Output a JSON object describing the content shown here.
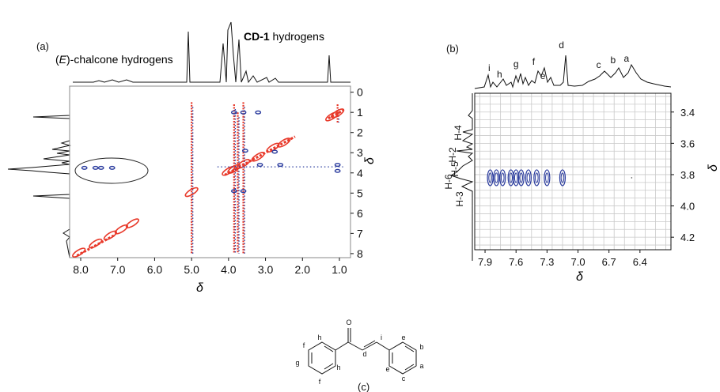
{
  "panel_a": {
    "label": "(a)",
    "annotation_left_prefix": "(",
    "annotation_left_italic": "E",
    "annotation_left_rest": ")-chalcone hydrogens",
    "annotation_right_bold": "CD-1",
    "annotation_right_rest": " hydrogens",
    "axis_symbol": "δ"
  },
  "panel_b": {
    "label": "(b)",
    "axis_symbol": "δ",
    "peak_labels": [
      "i",
      "h",
      "g",
      "f",
      "e",
      "d",
      "c",
      "b",
      "a"
    ],
    "h_labels": [
      "H-6",
      "H-5",
      "H-2",
      "H-4",
      "H-3"
    ]
  },
  "panel_c": {
    "label": "(c)",
    "atom_labels": [
      "O",
      "h",
      "f",
      "g",
      "h",
      "f",
      "i",
      "d",
      "e",
      "b",
      "e",
      "a",
      "c"
    ]
  },
  "chart_data": [
    {
      "type": "scatter",
      "subtype": "2D NMR ROESY contour map",
      "title": "",
      "xlabel": "δ",
      "ylabel": "δ",
      "x_ticks": [
        "8.0",
        "7.0",
        "6.0",
        "5.0",
        "4.0",
        "3.0",
        "2.0",
        "1.0"
      ],
      "y_ticks": [
        "0",
        "1",
        "2",
        "3",
        "4",
        "5",
        "6",
        "7",
        "8"
      ],
      "xlim": [
        8.3,
        0.7
      ],
      "ylim": [
        -0.3,
        8.2
      ],
      "grid": false,
      "colors": {
        "positive": "#e8392a",
        "negative": "#2b3c9e"
      },
      "series": [
        {
          "name": "",
          "color": "positive",
          "diagonal": [
            [
              8.05,
              7.95
            ],
            [
              7.6,
              7.5
            ],
            [
              7.2,
              7.1
            ],
            [
              6.9,
              6.8
            ],
            [
              6.6,
              6.5
            ],
            [
              5.0,
              4.95
            ],
            [
              4.0,
              3.9
            ],
            [
              3.85,
              3.8
            ],
            [
              3.6,
              3.55
            ],
            [
              3.2,
              3.2
            ],
            [
              2.8,
              2.75
            ],
            [
              2.5,
              2.5
            ],
            [
              1.2,
              1.2
            ],
            [
              1.05,
              1.05
            ]
          ]
        },
        {
          "name": "",
          "color": "negative",
          "cross_peaks": [
            [
              7.9,
              3.75
            ],
            [
              7.6,
              3.75
            ],
            [
              7.45,
              3.75
            ],
            [
              7.15,
              3.75
            ],
            [
              3.85,
              1.0
            ],
            [
              3.6,
              1.0
            ],
            [
              3.2,
              1.0
            ],
            [
              3.85,
              4.9
            ],
            [
              3.6,
              4.9
            ],
            [
              3.15,
              3.6
            ],
            [
              2.6,
              3.6
            ],
            [
              1.05,
              3.6
            ],
            [
              1.05,
              3.9
            ],
            [
              3.55,
              2.9
            ],
            [
              2.75,
              2.95
            ]
          ]
        }
      ],
      "annotations": [
        "(E)-chalcone hydrogens",
        "CD-1 hydrogens"
      ]
    },
    {
      "type": "scatter",
      "subtype": "2D NMR ROESY expansion",
      "title": "",
      "xlabel": "δ",
      "ylabel": "δ",
      "x_ticks": [
        "7.9",
        "7.6",
        "7.3",
        "7.0",
        "6.7",
        "6.4"
      ],
      "y_ticks": [
        "3.4",
        "3.6",
        "3.8",
        "4.0",
        "4.2"
      ],
      "xlim": [
        8.0,
        6.1
      ],
      "ylim": [
        3.28,
        4.28
      ],
      "grid": true,
      "cross_peaks": [
        [
          7.85,
          3.82
        ],
        [
          7.79,
          3.82
        ],
        [
          7.73,
          3.82
        ],
        [
          7.65,
          3.82
        ],
        [
          7.6,
          3.82
        ],
        [
          7.55,
          3.82
        ],
        [
          7.48,
          3.82
        ],
        [
          7.4,
          3.82
        ],
        [
          7.3,
          3.82
        ],
        [
          7.15,
          3.82
        ]
      ],
      "peak_labels": [
        {
          "label": "i",
          "x": 7.86
        },
        {
          "label": "h",
          "x": 7.76
        },
        {
          "label": "g",
          "x": 7.6
        },
        {
          "label": "f",
          "x": 7.43
        },
        {
          "label": "e",
          "x": 7.34
        },
        {
          "label": "d",
          "x": 7.16
        },
        {
          "label": "c",
          "x": 6.8
        },
        {
          "label": "b",
          "x": 6.66
        },
        {
          "label": "a",
          "x": 6.53
        }
      ]
    }
  ]
}
